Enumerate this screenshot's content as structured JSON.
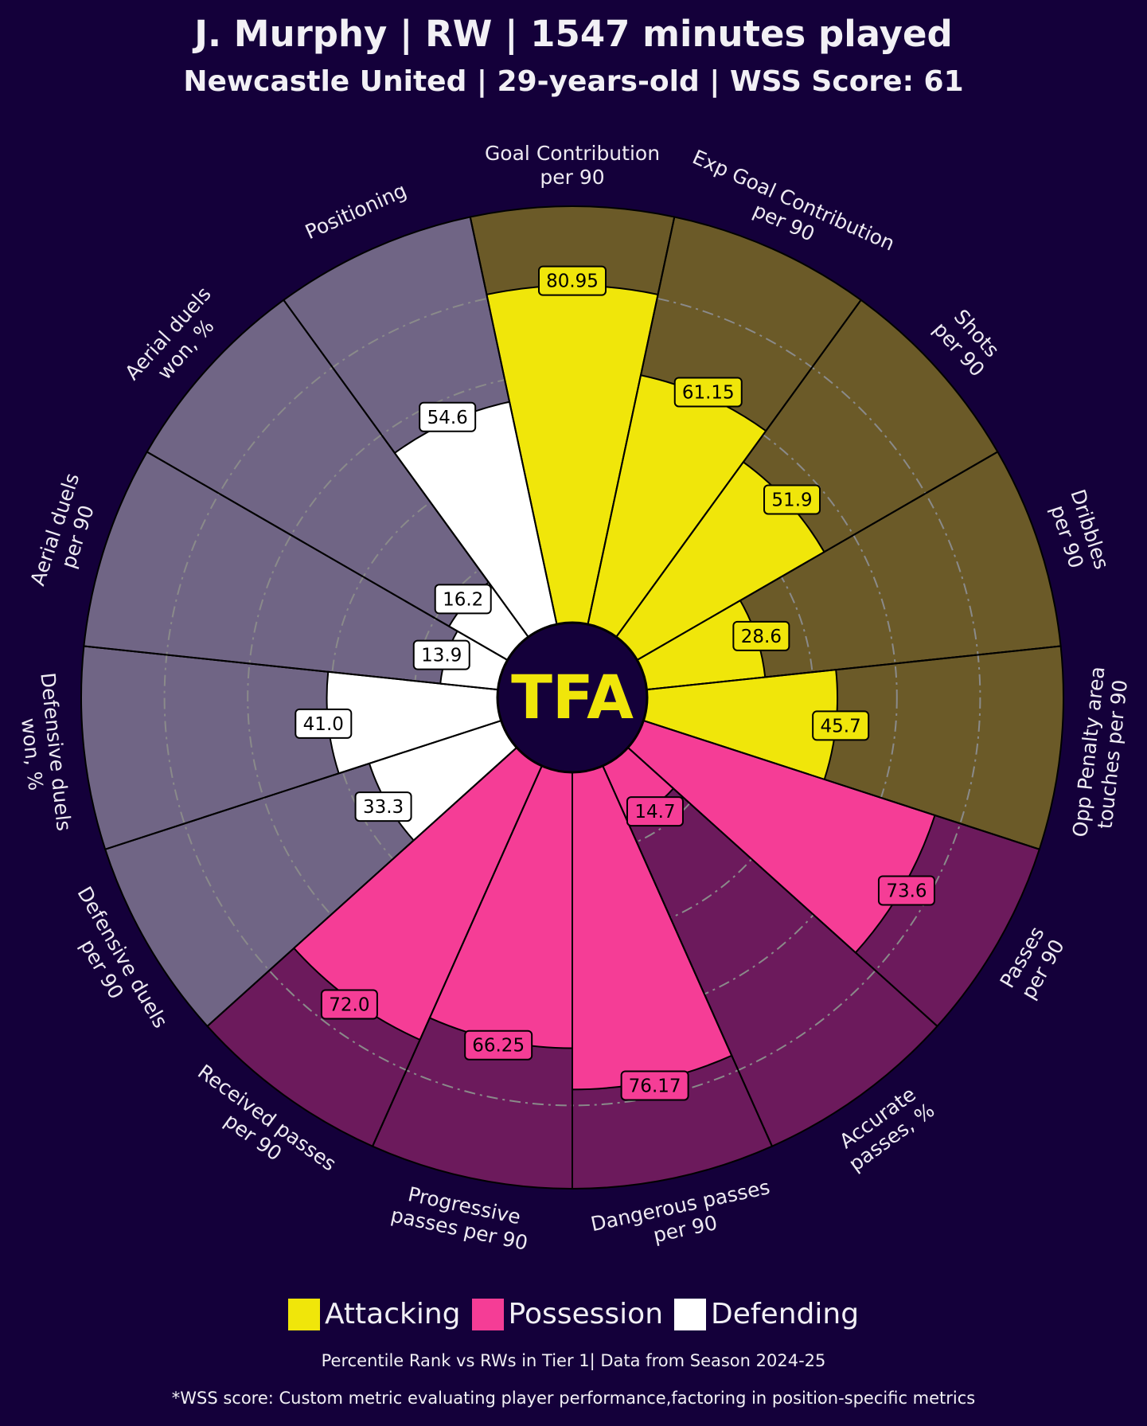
{
  "header": {
    "title": "J. Murphy | RW | 1547 minutes played",
    "subtitle": "Newcastle United | 29-years-old | WSS Score: 61"
  },
  "logo": "TFA",
  "colors": {
    "background": "#14003a",
    "attacking": "#f0e60a",
    "attacking_bg": "#6b5a28",
    "possession": "#f53d96",
    "possession_bg": "#6c1a5c",
    "defending": "#ffffff",
    "defending_bg": "#706585",
    "grid": "#8a8a8a"
  },
  "chart_data": {
    "type": "radial-bar",
    "title": "J. Murphy | RW | 1547 minutes played",
    "rlim": [
      0,
      100
    ],
    "grid_rings": [
      20,
      40,
      60,
      80
    ],
    "categories": [
      {
        "label": [
          "Goal Contribution",
          "per 90"
        ],
        "value": 80.95,
        "value_label": "80.95",
        "group": "attacking"
      },
      {
        "label": [
          "Exp Goal Contribution",
          "per 90"
        ],
        "value": 61.15,
        "value_label": "61.15",
        "group": "attacking"
      },
      {
        "label": [
          "Shots",
          "per 90"
        ],
        "value": 51.9,
        "value_label": "51.9",
        "group": "attacking"
      },
      {
        "label": [
          "Dribbles",
          "per 90"
        ],
        "value": 28.6,
        "value_label": "28.6",
        "group": "attacking"
      },
      {
        "label": [
          "Opp Penalty area",
          "touches per 90"
        ],
        "value": 45.7,
        "value_label": "45.7",
        "group": "attacking"
      },
      {
        "label": [
          "Passes",
          "per 90"
        ],
        "value": 73.6,
        "value_label": "73.6",
        "group": "possession"
      },
      {
        "label": [
          "Accurate",
          "passes, %"
        ],
        "value": 14.7,
        "value_label": "14.7",
        "group": "possession"
      },
      {
        "label": [
          "Dangerous passes",
          "per 90"
        ],
        "value": 76.17,
        "value_label": "76.17",
        "group": "possession"
      },
      {
        "label": [
          "Progressive",
          "passes per 90"
        ],
        "value": 66.25,
        "value_label": "66.25",
        "group": "possession"
      },
      {
        "label": [
          "Received passes",
          "per 90"
        ],
        "value": 72.0,
        "value_label": "72.0",
        "group": "possession"
      },
      {
        "label": [
          "Defensive duels",
          "per 90"
        ],
        "value": 33.3,
        "value_label": "33.3",
        "group": "defending"
      },
      {
        "label": [
          "Defensive duels",
          "won, %"
        ],
        "value": 41.0,
        "value_label": "41.0",
        "group": "defending"
      },
      {
        "label": [
          "Aerial duels",
          "per 90"
        ],
        "value": 13.9,
        "value_label": "13.9",
        "group": "defending"
      },
      {
        "label": [
          "Aerial duels",
          "won, %"
        ],
        "value": 16.2,
        "value_label": "16.2",
        "group": "defending"
      },
      {
        "label": [
          "Positioning"
        ],
        "value": 54.6,
        "value_label": "54.6",
        "group": "defending"
      }
    ],
    "legend": [
      {
        "label": "Attacking",
        "group": "attacking"
      },
      {
        "label": "Possession",
        "group": "possession"
      },
      {
        "label": "Defending",
        "group": "defending"
      }
    ],
    "legend_position": "bottom-center"
  },
  "footer": {
    "note1": "Percentile Rank vs RWs in Tier 1| Data from Season 2024-25",
    "note2": "*WSS score: Custom metric evaluating player performance,factoring in position-specific metrics"
  }
}
